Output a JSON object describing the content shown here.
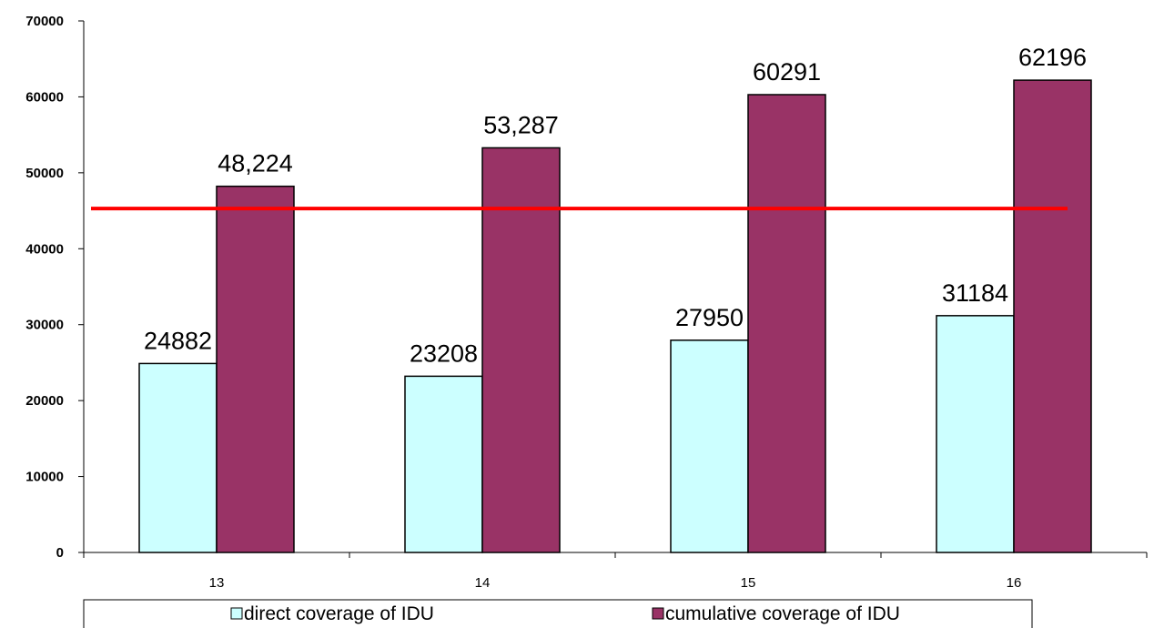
{
  "chart_data": {
    "type": "bar",
    "categories": [
      "13",
      "14",
      "15",
      "16"
    ],
    "series": [
      {
        "name": "direct coverage of IDU",
        "values": [
          24882,
          23208,
          27950,
          31184
        ],
        "labels": [
          "24882",
          "23208",
          "27950",
          "31184"
        ],
        "color": "#ccffff"
      },
      {
        "name": "cumulative coverage of IDU",
        "values": [
          48224,
          53287,
          60291,
          62196
        ],
        "labels": [
          "48,224",
          "53,287",
          "60291",
          "62196"
        ],
        "color": "#993366"
      }
    ],
    "reference_line": {
      "value": 45300,
      "color": "#ff0000"
    },
    "ylim": [
      0,
      70000
    ],
    "yticks": [
      "0",
      "10000",
      "20000",
      "30000",
      "40000",
      "50000",
      "60000",
      "70000"
    ],
    "title": "",
    "xlabel": "",
    "ylabel": "",
    "grid": false,
    "legend_position": "bottom"
  }
}
